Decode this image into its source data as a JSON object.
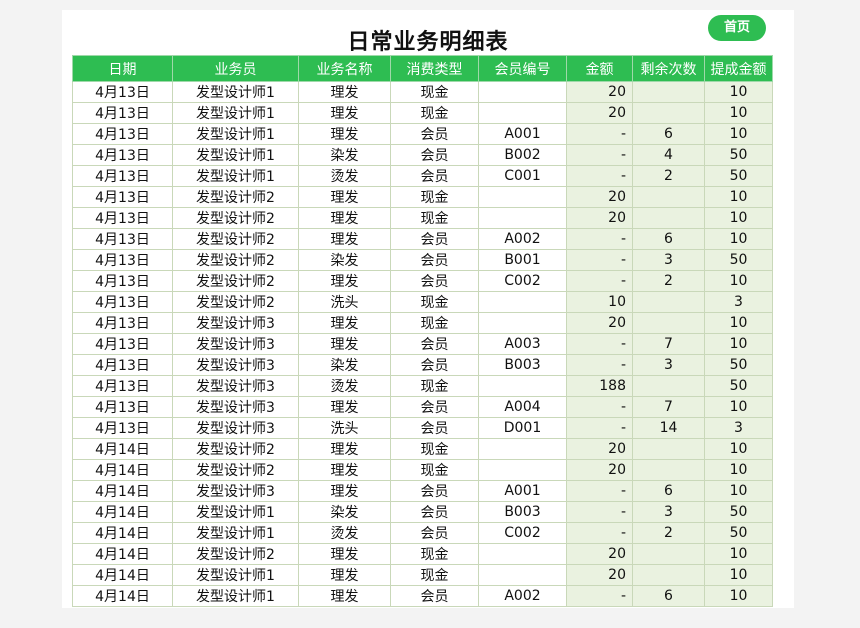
{
  "header": {
    "title": "日常业务明细表",
    "home_label": "首页"
  },
  "table": {
    "columns": [
      "日期",
      "业务员",
      "业务名称",
      "消费类型",
      "会员编号",
      "金额",
      "剩余次数",
      "提成金额"
    ],
    "rows": [
      [
        "4月13日",
        "发型设计师1",
        "理发",
        "现金",
        "",
        "20",
        "",
        "10"
      ],
      [
        "4月13日",
        "发型设计师1",
        "理发",
        "现金",
        "",
        "20",
        "",
        "10"
      ],
      [
        "4月13日",
        "发型设计师1",
        "理发",
        "会员",
        "A001",
        "-",
        "6",
        "10"
      ],
      [
        "4月13日",
        "发型设计师1",
        "染发",
        "会员",
        "B002",
        "-",
        "4",
        "50"
      ],
      [
        "4月13日",
        "发型设计师1",
        "烫发",
        "会员",
        "C001",
        "-",
        "2",
        "50"
      ],
      [
        "4月13日",
        "发型设计师2",
        "理发",
        "现金",
        "",
        "20",
        "",
        "10"
      ],
      [
        "4月13日",
        "发型设计师2",
        "理发",
        "现金",
        "",
        "20",
        "",
        "10"
      ],
      [
        "4月13日",
        "发型设计师2",
        "理发",
        "会员",
        "A002",
        "-",
        "6",
        "10"
      ],
      [
        "4月13日",
        "发型设计师2",
        "染发",
        "会员",
        "B001",
        "-",
        "3",
        "50"
      ],
      [
        "4月13日",
        "发型设计师2",
        "理发",
        "会员",
        "C002",
        "-",
        "2",
        "10"
      ],
      [
        "4月13日",
        "发型设计师2",
        "洗头",
        "现金",
        "",
        "10",
        "",
        "3"
      ],
      [
        "4月13日",
        "发型设计师3",
        "理发",
        "现金",
        "",
        "20",
        "",
        "10"
      ],
      [
        "4月13日",
        "发型设计师3",
        "理发",
        "会员",
        "A003",
        "-",
        "7",
        "10"
      ],
      [
        "4月13日",
        "发型设计师3",
        "染发",
        "会员",
        "B003",
        "-",
        "3",
        "50"
      ],
      [
        "4月13日",
        "发型设计师3",
        "烫发",
        "现金",
        "",
        "188",
        "",
        "50"
      ],
      [
        "4月13日",
        "发型设计师3",
        "理发",
        "会员",
        "A004",
        "-",
        "7",
        "10"
      ],
      [
        "4月13日",
        "发型设计师3",
        "洗头",
        "会员",
        "D001",
        "-",
        "14",
        "3"
      ],
      [
        "4月14日",
        "发型设计师2",
        "理发",
        "现金",
        "",
        "20",
        "",
        "10"
      ],
      [
        "4月14日",
        "发型设计师2",
        "理发",
        "现金",
        "",
        "20",
        "",
        "10"
      ],
      [
        "4月14日",
        "发型设计师3",
        "理发",
        "会员",
        "A001",
        "-",
        "6",
        "10"
      ],
      [
        "4月14日",
        "发型设计师1",
        "染发",
        "会员",
        "B003",
        "-",
        "3",
        "50"
      ],
      [
        "4月14日",
        "发型设计师1",
        "烫发",
        "会员",
        "C002",
        "-",
        "2",
        "50"
      ],
      [
        "4月14日",
        "发型设计师2",
        "理发",
        "现金",
        "",
        "20",
        "",
        "10"
      ],
      [
        "4月14日",
        "发型设计师1",
        "理发",
        "现金",
        "",
        "20",
        "",
        "10"
      ],
      [
        "4月14日",
        "发型设计师1",
        "理发",
        "会员",
        "A002",
        "-",
        "6",
        "10"
      ]
    ]
  },
  "colors": {
    "header_green": "#2ebd52",
    "numeric_cell_bg": "#eaf2e0"
  }
}
